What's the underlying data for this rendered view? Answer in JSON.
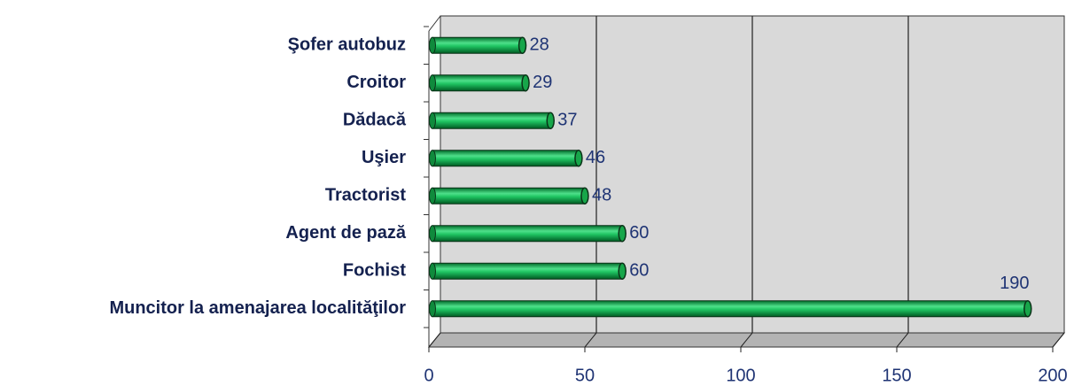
{
  "chart_data": {
    "type": "bar",
    "orientation": "horizontal",
    "categories": [
      "Şofer autobuz",
      "Croitor",
      "Dădacă",
      "Uşier",
      "Tractorist",
      "Agent de pază",
      "Fochist",
      "Muncitor la amenajarea localităţilor"
    ],
    "values": [
      28,
      29,
      37,
      46,
      48,
      60,
      60,
      190
    ],
    "color": "#00b050",
    "xlim": [
      0,
      200
    ],
    "xticks": [
      0,
      50,
      100,
      150,
      200
    ],
    "grid": true
  }
}
